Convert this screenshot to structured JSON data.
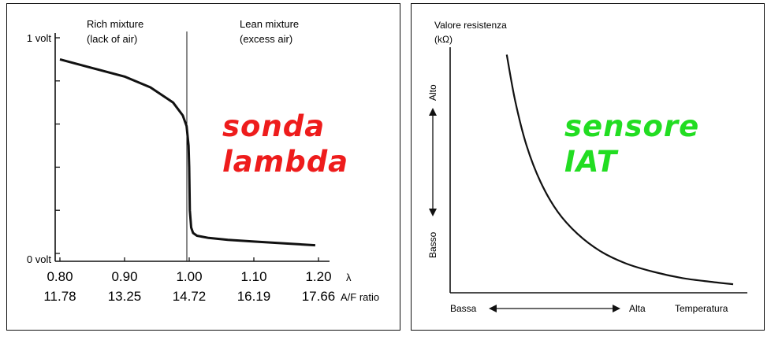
{
  "overlays": {
    "lambda_title_1": "sonda",
    "lambda_title_2": "lambda",
    "iat_title_1": "sensore",
    "iat_title_2": "IAT"
  },
  "chart_data": [
    {
      "type": "line",
      "title": "",
      "regions": {
        "rich": [
          "Rich mixture",
          "(lack of air)"
        ],
        "lean": [
          "Lean mixture",
          "(excess air)"
        ]
      },
      "y_tick_labels": {
        "top": "1 volt",
        "bottom": "0 volt"
      },
      "ylim": [
        0,
        1
      ],
      "xlim": [
        0.8,
        1.2
      ],
      "x_axes": [
        {
          "label": "λ",
          "ticks": [
            "0.80",
            "0.90",
            "1.00",
            "1.10",
            "1.20"
          ]
        },
        {
          "label": "A/F ratio",
          "ticks": [
            "11.78",
            "13.25",
            "14.72",
            "16.19",
            "17.66"
          ]
        }
      ],
      "series": [
        {
          "x": [
            0.8,
            0.85,
            0.9,
            0.94,
            0.975,
            0.99,
            0.996,
            0.999,
            1.0,
            1.001,
            1.003,
            1.006,
            1.012,
            1.03,
            1.06,
            1.1,
            1.15,
            1.195
          ],
          "y": [
            0.9,
            0.86,
            0.82,
            0.77,
            0.7,
            0.64,
            0.59,
            0.5,
            0.4,
            0.2,
            0.12,
            0.095,
            0.082,
            0.072,
            0.063,
            0.055,
            0.046,
            0.038
          ]
        }
      ],
      "color": "#111111"
    },
    {
      "type": "line",
      "title": "",
      "ylabel": [
        "Valore resistenza",
        "(kΩ)"
      ],
      "y_direction_labels": {
        "high": "Alto",
        "low": "Basso"
      },
      "x_direction_labels": {
        "low": "Bassa",
        "high": "Alta"
      },
      "xlabel": "Temperatura",
      "xlim": [
        0,
        1
      ],
      "ylim": [
        0,
        1
      ],
      "series": [
        {
          "x": [
            0.2,
            0.23,
            0.27,
            0.32,
            0.38,
            0.45,
            0.53,
            0.62,
            0.72,
            0.82,
            0.92,
            1.0
          ],
          "y": [
            0.97,
            0.78,
            0.6,
            0.45,
            0.33,
            0.24,
            0.17,
            0.12,
            0.085,
            0.06,
            0.045,
            0.035
          ]
        }
      ],
      "color": "#111111"
    }
  ]
}
